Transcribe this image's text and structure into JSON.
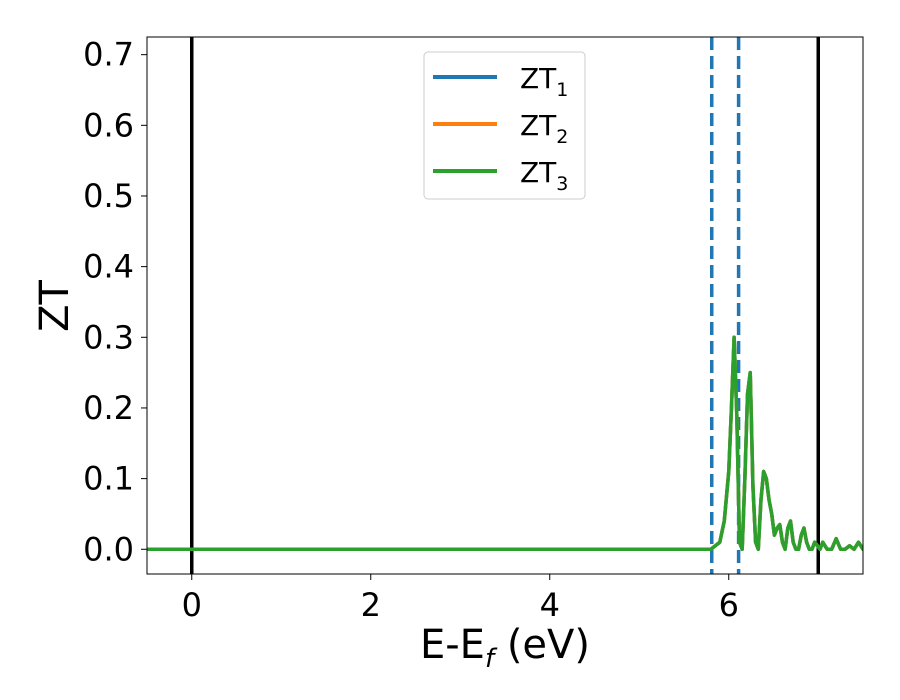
{
  "chart_data": {
    "type": "line",
    "xlabel_main": "E-E",
    "xlabel_sub": "f",
    "xlabel_unit": " (eV)",
    "ylabel": "ZT",
    "xlim": [
      -0.5,
      7.5
    ],
    "ylim": [
      -0.035,
      0.725
    ],
    "x_ticks": [
      0,
      2,
      4,
      6
    ],
    "x_tick_labels": [
      "0",
      "2",
      "4",
      "6"
    ],
    "y_ticks": [
      0.0,
      0.1,
      0.2,
      0.3,
      0.4,
      0.5,
      0.6,
      0.7
    ],
    "y_tick_labels": [
      "0.0",
      "0.1",
      "0.2",
      "0.3",
      "0.4",
      "0.5",
      "0.6",
      "0.7"
    ],
    "grid": false,
    "legend_position": "top-center",
    "vlines_solid": [
      0.0,
      7.0
    ],
    "vlines_dashed": [
      5.81,
      6.11
    ],
    "vline_solid_color": "#000000",
    "vline_dashed_color": "#1f77b4",
    "series": [
      {
        "name_main": "ZT",
        "name_sub": "1",
        "color": "#1f77b4",
        "x": [
          -0.5,
          5.6,
          5.8,
          5.9,
          5.95,
          6.0,
          6.03,
          6.06,
          6.09,
          6.12,
          6.15,
          6.18,
          6.21,
          6.24,
          6.27,
          6.3,
          6.33,
          6.36,
          6.39,
          6.42,
          6.45,
          6.48,
          6.51,
          6.54,
          6.57,
          6.6,
          6.63,
          6.66,
          6.69,
          6.72,
          6.75,
          6.78,
          6.81,
          6.84,
          6.87,
          6.9,
          6.93,
          6.96,
          6.99,
          7.02,
          7.05,
          7.1,
          7.15,
          7.2,
          7.25,
          7.3,
          7.35,
          7.4,
          7.45,
          7.5
        ],
        "y": [
          0.0,
          0.0,
          0.0,
          0.01,
          0.04,
          0.11,
          0.2,
          0.3,
          0.19,
          0.01,
          0.0,
          0.1,
          0.22,
          0.25,
          0.09,
          0.01,
          0.0,
          0.07,
          0.11,
          0.1,
          0.07,
          0.05,
          0.02,
          0.03,
          0.035,
          0.01,
          0.0,
          0.03,
          0.04,
          0.01,
          0.0,
          0.0,
          0.02,
          0.03,
          0.01,
          0.0,
          0.0,
          0.01,
          0.005,
          0.0,
          0.01,
          0.0,
          0.0,
          0.015,
          0.0,
          0.0,
          0.005,
          0.0,
          0.01,
          0.0
        ]
      },
      {
        "name_main": "ZT",
        "name_sub": "2",
        "color": "#ff7f0e",
        "x": [
          -0.5,
          5.6,
          5.8,
          5.9,
          5.95,
          6.0,
          6.03,
          6.06,
          6.09,
          6.12,
          6.15,
          6.18,
          6.21,
          6.24,
          6.27,
          6.3,
          6.33,
          6.36,
          6.39,
          6.42,
          6.45,
          6.48,
          6.51,
          6.54,
          6.57,
          6.6,
          6.63,
          6.66,
          6.69,
          6.72,
          6.75,
          6.78,
          6.81,
          6.84,
          6.87,
          6.9,
          6.93,
          6.96,
          6.99,
          7.02,
          7.05,
          7.1,
          7.15,
          7.2,
          7.25,
          7.3,
          7.35,
          7.4,
          7.45,
          7.5
        ],
        "y": [
          0.0,
          0.0,
          0.0,
          0.01,
          0.04,
          0.11,
          0.2,
          0.3,
          0.19,
          0.01,
          0.0,
          0.1,
          0.22,
          0.25,
          0.09,
          0.01,
          0.0,
          0.07,
          0.11,
          0.1,
          0.07,
          0.05,
          0.02,
          0.03,
          0.035,
          0.01,
          0.0,
          0.03,
          0.04,
          0.01,
          0.0,
          0.0,
          0.02,
          0.03,
          0.01,
          0.0,
          0.0,
          0.01,
          0.005,
          0.0,
          0.01,
          0.0,
          0.0,
          0.015,
          0.0,
          0.0,
          0.005,
          0.0,
          0.01,
          0.0
        ]
      },
      {
        "name_main": "ZT",
        "name_sub": "3",
        "color": "#2ca02c",
        "x": [
          -0.5,
          5.6,
          5.8,
          5.9,
          5.95,
          6.0,
          6.03,
          6.06,
          6.09,
          6.12,
          6.15,
          6.18,
          6.21,
          6.24,
          6.27,
          6.3,
          6.33,
          6.36,
          6.39,
          6.42,
          6.45,
          6.48,
          6.51,
          6.54,
          6.57,
          6.6,
          6.63,
          6.66,
          6.69,
          6.72,
          6.75,
          6.78,
          6.81,
          6.84,
          6.87,
          6.9,
          6.93,
          6.96,
          6.99,
          7.02,
          7.05,
          7.1,
          7.15,
          7.2,
          7.25,
          7.3,
          7.35,
          7.4,
          7.45,
          7.5
        ],
        "y": [
          0.0,
          0.0,
          0.0,
          0.01,
          0.04,
          0.11,
          0.2,
          0.3,
          0.19,
          0.01,
          0.0,
          0.1,
          0.22,
          0.25,
          0.09,
          0.01,
          0.0,
          0.07,
          0.11,
          0.1,
          0.07,
          0.05,
          0.02,
          0.03,
          0.035,
          0.01,
          0.0,
          0.03,
          0.04,
          0.01,
          0.0,
          0.0,
          0.02,
          0.03,
          0.01,
          0.0,
          0.0,
          0.01,
          0.005,
          0.0,
          0.01,
          0.0,
          0.0,
          0.015,
          0.0,
          0.0,
          0.005,
          0.0,
          0.01,
          0.0
        ]
      }
    ]
  }
}
